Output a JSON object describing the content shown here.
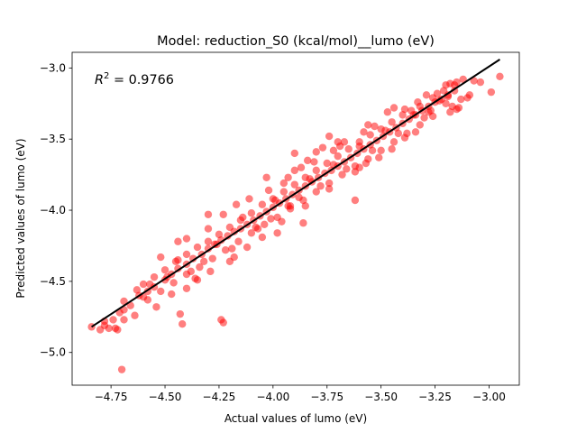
{
  "chart_data": {
    "type": "scatter",
    "title": "Model: reduction_S0 (kcal/mol)__lumo (eV)",
    "xlabel": "Actual values of lumo (eV)",
    "ylabel": "Predicted values of lumo (eV)",
    "xlim": [
      -4.93,
      -2.86
    ],
    "ylim": [
      -5.23,
      -2.89
    ],
    "xticks": [
      -4.75,
      -4.5,
      -4.25,
      -4.0,
      -3.75,
      -3.5,
      -3.25,
      -3.0
    ],
    "xtick_labels": [
      "−4.75",
      "−4.50",
      "−4.25",
      "−4.00",
      "−3.75",
      "−3.50",
      "−3.25",
      "−3.00"
    ],
    "yticks": [
      -5.0,
      -4.5,
      -4.0,
      -3.5,
      -3.0
    ],
    "ytick_labels": [
      "−5.0",
      "−4.5",
      "−4.0",
      "−3.5",
      "−3.0"
    ],
    "annotation": {
      "prefix": "R",
      "superscript": "2",
      "value": " = 0.9766",
      "position": "top-left"
    },
    "grid": false,
    "colors": {
      "points": "#ff0000",
      "fit_line": "#000000"
    },
    "fit_line": {
      "x": [
        -4.84,
        -2.95
      ],
      "y": [
        -4.82,
        -2.94
      ]
    },
    "series": [
      {
        "points": [
          [
            -4.84,
            -4.82
          ],
          [
            -4.78,
            -4.81
          ],
          [
            -4.76,
            -4.83
          ],
          [
            -4.73,
            -4.83
          ],
          [
            -4.74,
            -4.77
          ],
          [
            -4.71,
            -4.72
          ],
          [
            -4.69,
            -4.7
          ],
          [
            -4.66,
            -4.67
          ],
          [
            -4.62,
            -4.6
          ],
          [
            -4.58,
            -4.57
          ],
          [
            -4.55,
            -4.54
          ],
          [
            -4.5,
            -4.49
          ],
          [
            -4.47,
            -4.45
          ],
          [
            -4.44,
            -4.41
          ],
          [
            -4.4,
            -4.38
          ],
          [
            -4.37,
            -4.34
          ],
          [
            -4.33,
            -4.31
          ],
          [
            -4.3,
            -4.27
          ],
          [
            -4.27,
            -4.24
          ],
          [
            -4.24,
            -4.21
          ],
          [
            -4.21,
            -4.18
          ],
          [
            -4.18,
            -4.15
          ],
          [
            -4.15,
            -4.13
          ],
          [
            -4.12,
            -4.1
          ],
          [
            -4.09,
            -4.07
          ],
          [
            -4.06,
            -4.04
          ],
          [
            -4.03,
            -4.01
          ],
          [
            -4.0,
            -3.98
          ],
          [
            -3.97,
            -3.95
          ],
          [
            -3.94,
            -3.92
          ],
          [
            -3.91,
            -3.89
          ],
          [
            -3.88,
            -3.86
          ],
          [
            -3.85,
            -3.83
          ],
          [
            -3.82,
            -3.8
          ],
          [
            -3.79,
            -3.77
          ],
          [
            -3.76,
            -3.74
          ],
          [
            -3.73,
            -3.72
          ],
          [
            -3.7,
            -3.69
          ],
          [
            -3.67,
            -3.66
          ],
          [
            -3.64,
            -3.63
          ],
          [
            -3.61,
            -3.6
          ],
          [
            -3.58,
            -3.57
          ],
          [
            -3.55,
            -3.54
          ],
          [
            -3.52,
            -3.51
          ],
          [
            -3.49,
            -3.48
          ],
          [
            -3.46,
            -3.45
          ],
          [
            -3.43,
            -3.42
          ],
          [
            -3.4,
            -3.39
          ],
          [
            -3.37,
            -3.36
          ],
          [
            -3.34,
            -3.33
          ],
          [
            -3.31,
            -3.3
          ],
          [
            -3.28,
            -3.27
          ],
          [
            -3.25,
            -3.24
          ],
          [
            -3.22,
            -3.22
          ],
          [
            -3.19,
            -3.2
          ],
          [
            -4.6,
            -4.52
          ],
          [
            -4.55,
            -4.47
          ],
          [
            -4.5,
            -4.42
          ],
          [
            -4.45,
            -4.36
          ],
          [
            -4.4,
            -4.31
          ],
          [
            -4.35,
            -4.26
          ],
          [
            -4.3,
            -4.22
          ],
          [
            -4.25,
            -4.17
          ],
          [
            -4.2,
            -4.12
          ],
          [
            -4.15,
            -4.07
          ],
          [
            -4.1,
            -4.02
          ],
          [
            -4.05,
            -3.96
          ],
          [
            -4.0,
            -3.92
          ],
          [
            -3.95,
            -3.87
          ],
          [
            -3.9,
            -3.82
          ],
          [
            -3.85,
            -3.77
          ],
          [
            -3.8,
            -3.72
          ],
          [
            -3.75,
            -3.67
          ],
          [
            -3.7,
            -3.62
          ],
          [
            -3.65,
            -3.57
          ],
          [
            -3.6,
            -3.52
          ],
          [
            -3.55,
            -3.47
          ],
          [
            -3.5,
            -3.43
          ],
          [
            -3.45,
            -3.38
          ],
          [
            -3.4,
            -3.33
          ],
          [
            -4.58,
            -4.63
          ],
          [
            -4.52,
            -4.57
          ],
          [
            -4.46,
            -4.51
          ],
          [
            -4.4,
            -4.45
          ],
          [
            -4.34,
            -4.4
          ],
          [
            -4.28,
            -4.34
          ],
          [
            -4.22,
            -4.28
          ],
          [
            -4.16,
            -4.22
          ],
          [
            -4.1,
            -4.16
          ],
          [
            -4.04,
            -4.1
          ],
          [
            -3.98,
            -4.05
          ],
          [
            -3.92,
            -3.99
          ],
          [
            -3.86,
            -3.93
          ],
          [
            -3.8,
            -3.87
          ],
          [
            -3.74,
            -3.81
          ],
          [
            -3.68,
            -3.75
          ],
          [
            -3.62,
            -3.69
          ],
          [
            -3.56,
            -3.64
          ],
          [
            -3.5,
            -3.58
          ],
          [
            -3.44,
            -3.52
          ],
          [
            -3.38,
            -3.46
          ],
          [
            -3.32,
            -3.4
          ],
          [
            -3.26,
            -3.34
          ],
          [
            -4.7,
            -5.12
          ],
          [
            -4.42,
            -4.8
          ],
          [
            -4.43,
            -4.73
          ],
          [
            -4.24,
            -4.77
          ],
          [
            -4.23,
            -4.79
          ],
          [
            -4.36,
            -4.48
          ],
          [
            -4.35,
            -4.49
          ],
          [
            -4.47,
            -4.59
          ],
          [
            -4.18,
            -4.33
          ],
          [
            -4.2,
            -4.36
          ],
          [
            -4.05,
            -4.19
          ],
          [
            -4.08,
            -4.12
          ],
          [
            -3.96,
            -4.08
          ],
          [
            -3.92,
            -3.97
          ],
          [
            -3.85,
            -3.97
          ],
          [
            -3.74,
            -3.85
          ],
          [
            -3.62,
            -3.73
          ],
          [
            -3.57,
            -3.67
          ],
          [
            -3.28,
            -3.31
          ],
          [
            -3.27,
            -3.3
          ],
          [
            -3.13,
            -3.22
          ],
          [
            -3.15,
            -3.29
          ],
          [
            -3.14,
            -3.28
          ],
          [
            -3.1,
            -3.21
          ],
          [
            -3.09,
            -3.19
          ],
          [
            -3.17,
            -3.27
          ],
          [
            -3.18,
            -3.31
          ],
          [
            -3.19,
            -3.19
          ],
          [
            -3.21,
            -3.16
          ],
          [
            -3.16,
            -3.16
          ],
          [
            -3.16,
            -3.12
          ],
          [
            -3.18,
            -3.11
          ],
          [
            -3.2,
            -3.12
          ],
          [
            -3.23,
            -3.23
          ],
          [
            -3.26,
            -3.21
          ],
          [
            -3.15,
            -3.1
          ],
          [
            -3.12,
            -3.08
          ],
          [
            -3.07,
            -3.09
          ],
          [
            -2.99,
            -3.17
          ],
          [
            -2.95,
            -3.06
          ],
          [
            -3.04,
            -3.1
          ],
          [
            -3.32,
            -3.27
          ],
          [
            -3.35,
            -3.33
          ],
          [
            -3.53,
            -3.41
          ],
          [
            -3.58,
            -3.45
          ],
          [
            -3.7,
            -3.52
          ],
          [
            -3.8,
            -3.59
          ],
          [
            -3.77,
            -3.56
          ],
          [
            -3.84,
            -3.65
          ],
          [
            -3.9,
            -3.72
          ],
          [
            -3.95,
            -3.81
          ],
          [
            -4.02,
            -3.86
          ],
          [
            -4.11,
            -3.92
          ],
          [
            -4.17,
            -3.96
          ],
          [
            -4.23,
            -4.03
          ],
          [
            -4.3,
            -4.13
          ],
          [
            -4.4,
            -4.2
          ],
          [
            -4.44,
            -4.22
          ],
          [
            -4.52,
            -4.33
          ],
          [
            -4.3,
            -4.03
          ],
          [
            -4.03,
            -3.77
          ],
          [
            -3.9,
            -3.6
          ],
          [
            -3.74,
            -3.48
          ],
          [
            -3.67,
            -3.52
          ],
          [
            -3.56,
            -3.4
          ],
          [
            -3.62,
            -3.93
          ],
          [
            -3.86,
            -4.09
          ],
          [
            -3.98,
            -4.16
          ],
          [
            -4.12,
            -4.26
          ],
          [
            -4.29,
            -4.43
          ],
          [
            -4.4,
            -4.55
          ],
          [
            -4.54,
            -4.68
          ],
          [
            -4.64,
            -4.74
          ],
          [
            -4.69,
            -4.77
          ],
          [
            -4.72,
            -4.84
          ],
          [
            -4.78,
            -4.78
          ],
          [
            -4.8,
            -4.84
          ],
          [
            -4.69,
            -4.64
          ],
          [
            -4.6,
            -4.61
          ],
          [
            -4.63,
            -4.56
          ],
          [
            -4.57,
            -4.52
          ],
          [
            -4.49,
            -4.47
          ],
          [
            -4.44,
            -4.35
          ],
          [
            -4.38,
            -4.43
          ],
          [
            -4.32,
            -4.36
          ],
          [
            -4.26,
            -4.24
          ],
          [
            -4.19,
            -4.27
          ],
          [
            -4.14,
            -4.05
          ],
          [
            -4.07,
            -4.13
          ],
          [
            -4.01,
            -4.06
          ],
          [
            -3.99,
            -3.93
          ],
          [
            -3.93,
            -3.97
          ],
          [
            -3.88,
            -3.91
          ],
          [
            -3.83,
            -3.78
          ],
          [
            -3.78,
            -3.83
          ],
          [
            -3.72,
            -3.68
          ],
          [
            -3.66,
            -3.71
          ],
          [
            -3.6,
            -3.55
          ],
          [
            -3.54,
            -3.58
          ],
          [
            -3.48,
            -3.44
          ],
          [
            -3.42,
            -3.46
          ],
          [
            -3.36,
            -3.3
          ],
          [
            -3.3,
            -3.35
          ],
          [
            -3.24,
            -3.18
          ],
          [
            -3.2,
            -3.25
          ],
          [
            -3.47,
            -3.31
          ],
          [
            -3.44,
            -3.28
          ],
          [
            -3.39,
            -3.29
          ],
          [
            -3.33,
            -3.24
          ],
          [
            -3.29,
            -3.19
          ],
          [
            -3.72,
            -3.58
          ],
          [
            -3.69,
            -3.55
          ],
          [
            -3.81,
            -3.66
          ],
          [
            -3.87,
            -3.7
          ],
          [
            -3.93,
            -3.77
          ],
          [
            -3.6,
            -3.7
          ],
          [
            -3.51,
            -3.63
          ],
          [
            -3.45,
            -3.57
          ],
          [
            -3.39,
            -3.49
          ],
          [
            -3.34,
            -3.45
          ]
        ]
      }
    ]
  }
}
